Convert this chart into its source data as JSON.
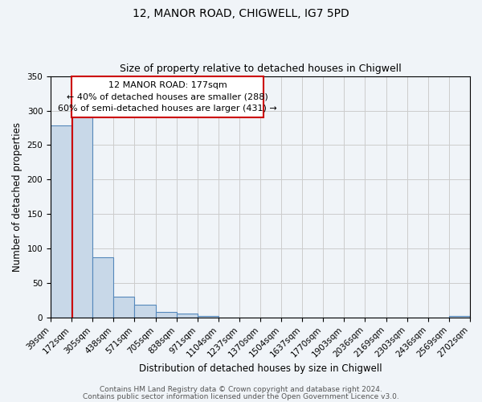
{
  "title": "12, MANOR ROAD, CHIGWELL, IG7 5PD",
  "subtitle": "Size of property relative to detached houses in Chigwell",
  "xlabel": "Distribution of detached houses by size in Chigwell",
  "ylabel": "Number of detached properties",
  "bar_edges": [
    39,
    172,
    305,
    438,
    571,
    705,
    838,
    971,
    1104,
    1237,
    1370,
    1504,
    1637,
    1770,
    1903,
    2036,
    2169,
    2303,
    2436,
    2569,
    2702
  ],
  "bar_heights": [
    278,
    291,
    88,
    30,
    19,
    8,
    6,
    3,
    0,
    0,
    0,
    0,
    0,
    0,
    0,
    0,
    0,
    0,
    0,
    2
  ],
  "bar_color": "#c8d8e8",
  "bar_edge_color": "#5588bb",
  "vline_x": 177,
  "vline_color": "#cc0000",
  "ylim": [
    0,
    350
  ],
  "yticks": [
    0,
    50,
    100,
    150,
    200,
    250,
    300,
    350
  ],
  "xtick_labels": [
    "39sqm",
    "172sqm",
    "305sqm",
    "438sqm",
    "571sqm",
    "705sqm",
    "838sqm",
    "971sqm",
    "1104sqm",
    "1237sqm",
    "1370sqm",
    "1504sqm",
    "1637sqm",
    "1770sqm",
    "1903sqm",
    "2036sqm",
    "2169sqm",
    "2303sqm",
    "2436sqm",
    "2569sqm",
    "2702sqm"
  ],
  "annotation_line1": "12 MANOR ROAD: 177sqm",
  "annotation_line2": "← 40% of detached houses are smaller (288)",
  "annotation_line3": "60% of semi-detached houses are larger (431) →",
  "footer_line1": "Contains HM Land Registry data © Crown copyright and database right 2024.",
  "footer_line2": "Contains public sector information licensed under the Open Government Licence v3.0.",
  "background_color": "#f0f4f8",
  "plot_background_color": "#f0f4f8",
  "grid_color": "#cccccc",
  "title_fontsize": 10,
  "subtitle_fontsize": 9,
  "axis_label_fontsize": 8.5,
  "tick_fontsize": 7.5,
  "footer_fontsize": 6.5,
  "annot_fontsize": 8
}
